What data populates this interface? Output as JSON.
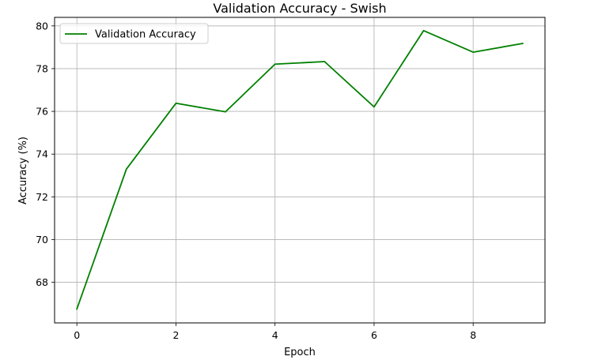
{
  "chart_data": {
    "type": "line",
    "title": "Validation Accuracy - Swish",
    "xlabel": "Epoch",
    "ylabel": "Accuracy (%)",
    "x": [
      0,
      1,
      2,
      3,
      4,
      5,
      6,
      7,
      8,
      9
    ],
    "series": [
      {
        "name": "Validation Accuracy",
        "color": "#008000",
        "values": [
          66.75,
          73.3,
          76.38,
          75.98,
          78.21,
          78.33,
          76.21,
          79.78,
          78.77,
          79.18
        ]
      }
    ],
    "xticks": [
      0,
      2,
      4,
      6,
      8
    ],
    "yticks": [
      68,
      70,
      72,
      74,
      76,
      78,
      80
    ],
    "xlim": [
      -0.45,
      9.45
    ],
    "ylim": [
      66.1,
      80.4
    ],
    "grid": true,
    "legend_position": "top-left"
  }
}
